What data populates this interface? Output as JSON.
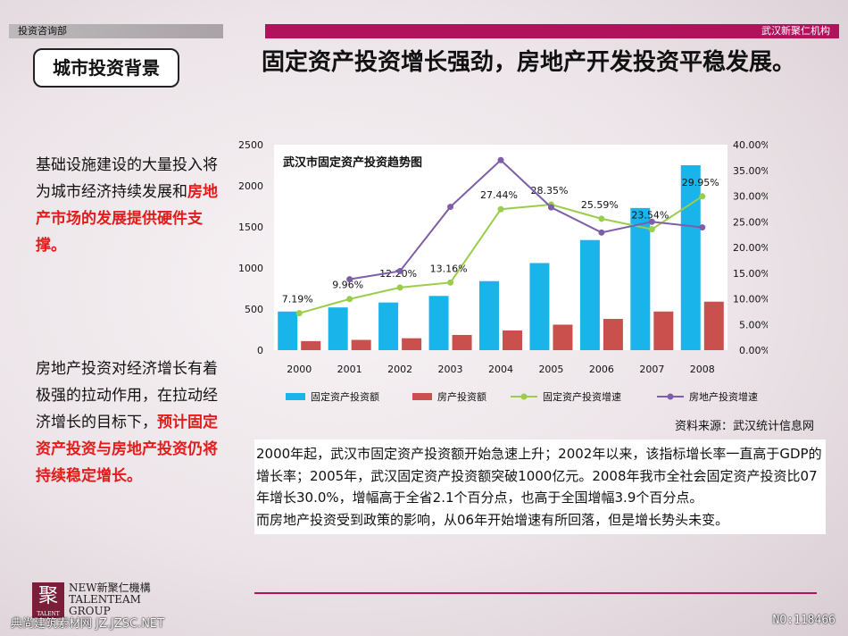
{
  "header": {
    "left_label": "投资咨询部",
    "right_label": "武汉新聚仁机构"
  },
  "section_tag": "城市投资背景",
  "headline": "固定资产投资增长强劲，房地产开发投资平稳发展。",
  "side_text_1": {
    "plain": "基础设施建设的大量投入将为城市经济持续发展和",
    "highlight": "房地产市场的发展提供硬件支撑。"
  },
  "side_text_2": {
    "plain": "房地产投资对经济增长有着极强的拉动作用，在拉动经济增长的目标下，",
    "highlight": "预计固定资产投资与房地产投资仍将持续稳定增长。"
  },
  "source": "资料来源：武汉统计信息网",
  "description": [
    "2000年起，武汉市固定资产投资额开始急速上升；2002年以来，该指标增长率一直高于GDP的增长率；2005年，武汉固定资产投资额突破1000亿元。2008年我市全社会固定资产投资比07年增长30.0%，增幅高于全省2.1个百分点，也高于全国增幅3.9个百分点。",
    "而房地产投资受到政策的影响，从06年开始增速有所回落，但是增长势头未变。"
  ],
  "logo": {
    "mark": "聚",
    "mark_sub": "TALENT",
    "line1": "NEW新聚仁機構",
    "line2": "TALENTEAM",
    "line3": "GROUP"
  },
  "watermark": {
    "left": "典尚建筑素材网 JZ.JZSC.NET",
    "right": "NO:118466"
  },
  "colors": {
    "fixed_bar": "#19b4ea",
    "realestate_bar": "#c9504d",
    "fixed_line": "#9acd4c",
    "realestate_line": "#7e5ea8",
    "accent": "#b0135b"
  },
  "chart_data": {
    "type": "bar",
    "title": "武汉市固定资产投资趋势图",
    "categories": [
      "2000",
      "2001",
      "2002",
      "2003",
      "2004",
      "2005",
      "2006",
      "2007",
      "2008"
    ],
    "y_left": {
      "ylim": [
        0,
        2500
      ],
      "ticks": [
        "0",
        "500",
        "1000",
        "1500",
        "2000",
        "2500"
      ]
    },
    "y_right": {
      "ylim": [
        0,
        40
      ],
      "ticks": [
        "0.00%",
        "5.00%",
        "10.00%",
        "15.00%",
        "20.00%",
        "25.00%",
        "30.00%",
        "35.00%",
        "40.00%"
      ]
    },
    "series": [
      {
        "name": "固定资产投资额",
        "kind": "bar",
        "axis": "left",
        "values": [
          470,
          520,
          580,
          660,
          840,
          1060,
          1340,
          1730,
          2250
        ]
      },
      {
        "name": "房产投资额",
        "kind": "bar",
        "axis": "left",
        "values": [
          110,
          125,
          145,
          185,
          240,
          310,
          380,
          470,
          590
        ]
      },
      {
        "name": "固定资产投资增速",
        "kind": "line",
        "axis": "right",
        "values": [
          7.19,
          9.96,
          12.2,
          13.16,
          27.44,
          28.35,
          25.59,
          23.54,
          29.95
        ],
        "labels": [
          "7.19%",
          "9.96%",
          "12.20%",
          "13.16%",
          "27.44%",
          "28.35%",
          "25.59%",
          "23.54%",
          "29.95%"
        ]
      },
      {
        "name": "房地产投资增速",
        "kind": "line",
        "axis": "right",
        "values": [
          null,
          13.8,
          15.4,
          27.9,
          37.0,
          27.8,
          22.9,
          25.0,
          23.9
        ]
      }
    ],
    "legend": "bottom",
    "grid": false
  }
}
